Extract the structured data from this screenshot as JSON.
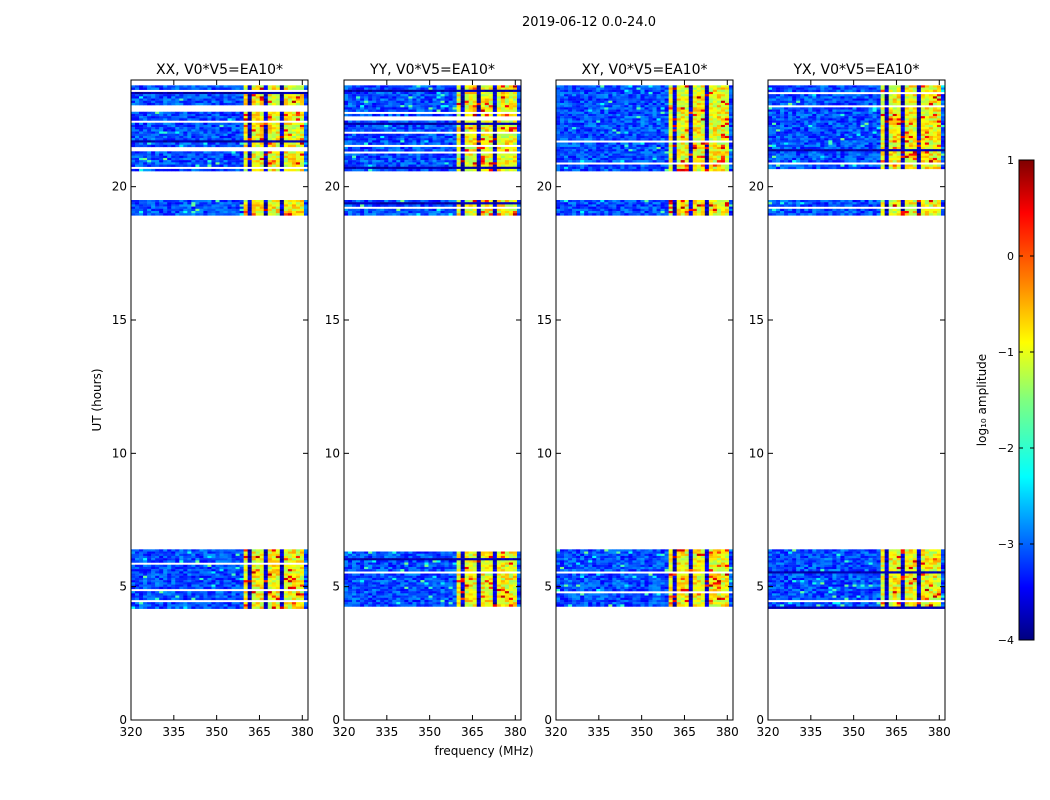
{
  "chart_data": {
    "type": "heatmap",
    "suptitle": "2019-06-12 0.0-24.0",
    "xlabel": "frequency (MHz)",
    "ylabel": "UT (hours)",
    "xlim": [
      320,
      382
    ],
    "ylim": [
      0,
      24
    ],
    "xticks": [
      320,
      335,
      350,
      365,
      380
    ],
    "yticks": [
      0,
      5,
      10,
      15,
      20
    ],
    "panels": [
      {
        "title": "XX, V0*V5=EA10*"
      },
      {
        "title": "YY, V0*V5=EA10*"
      },
      {
        "title": "XY, V0*V5=EA10*"
      },
      {
        "title": "YX, V0*V5=EA10*"
      }
    ],
    "data_blocks_ut": [
      {
        "start": 4.2,
        "end": 6.4
      },
      {
        "start": 18.9,
        "end": 19.5
      },
      {
        "start": 20.6,
        "end": 23.8
      }
    ],
    "rfi_band_mhz": [
      360,
      380
    ],
    "colorbar": {
      "label": "log₁₀ amplitude",
      "range": [
        -4,
        1
      ],
      "ticks": [
        1,
        0,
        -1,
        -2,
        -3,
        -4
      ],
      "tick_labels": [
        "1",
        "0",
        "−1",
        "−2",
        "−3",
        "−4"
      ],
      "colormap": "jet",
      "stops": [
        "#00007f",
        "#0000ff",
        "#007fff",
        "#00ffff",
        "#7fff7f",
        "#ffff00",
        "#ff7f00",
        "#ff0000",
        "#7f0000"
      ]
    }
  }
}
